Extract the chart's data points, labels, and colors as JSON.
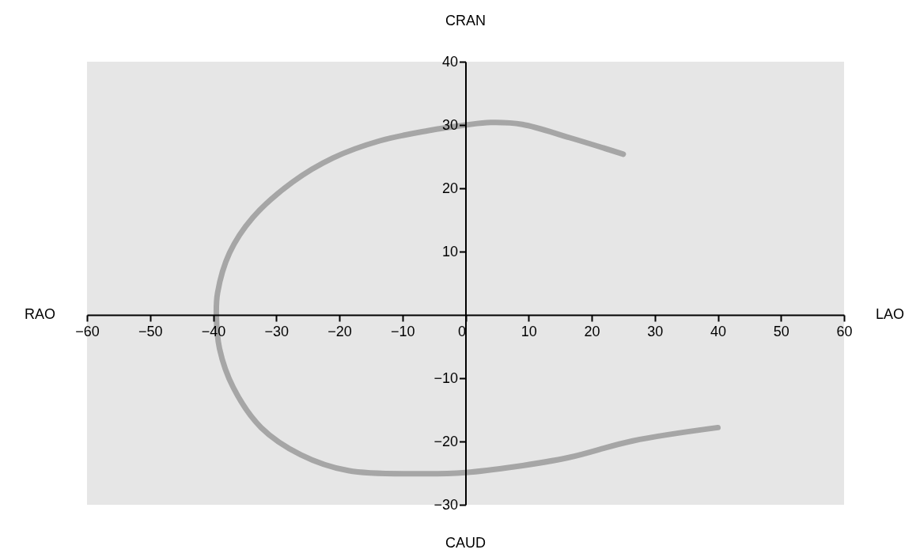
{
  "chart_data": {
    "type": "line",
    "x": [
      25,
      16.5,
      9,
      4,
      0,
      -6,
      -13.6,
      -21,
      -27.4,
      -33.7,
      -37.4,
      -39.3,
      -39.5,
      -39,
      -36.8,
      -32.4,
      -26.1,
      -18.6,
      -6.7,
      0,
      7.7,
      16.5,
      26.5,
      40
    ],
    "series": [
      {
        "color": "#a6a6a6",
        "values": [
          25.4,
          28,
          30.1,
          30.4,
          30,
          29.1,
          27.5,
          24.8,
          21,
          15.4,
          9.8,
          3.5,
          0,
          -5.3,
          -11.5,
          -17.8,
          -22.1,
          -24.6,
          -25.1,
          -24.9,
          -24,
          -22.5,
          -19.9,
          -17.8
        ]
      }
    ],
    "xlim": [
      -60,
      60
    ],
    "ylim": [
      -30,
      40
    ],
    "xticks": [
      -60,
      -50,
      -40,
      -30,
      -20,
      -10,
      0,
      10,
      20,
      30,
      40,
      50,
      60
    ],
    "yticks": [
      -30,
      -20,
      -10,
      10,
      20,
      30,
      40
    ],
    "annotations": [
      "RAO",
      "LAO",
      "CRAN",
      "CAUD"
    ],
    "line_style": "solid"
  }
}
